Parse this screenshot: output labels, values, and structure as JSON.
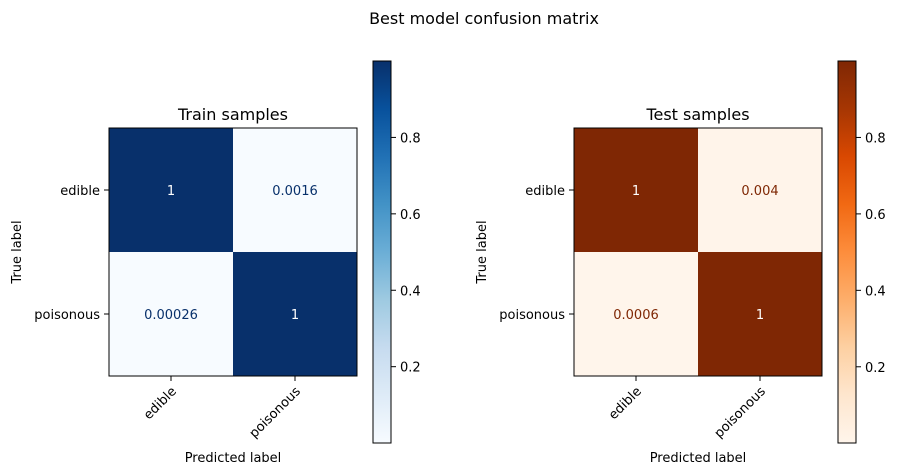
{
  "chart_data": [
    {
      "type": "heatmap",
      "suptitle": "Best model confusion matrix",
      "title": "Train samples",
      "xlabel": "Predicted label",
      "ylabel": "True label",
      "x_categories": [
        "edible",
        "poisonous"
      ],
      "y_categories": [
        "edible",
        "poisonous"
      ],
      "values": [
        [
          1,
          0.0016
        ],
        [
          0.00026,
          1
        ]
      ],
      "value_labels": [
        [
          "1",
          "0.0016"
        ],
        [
          "0.00026",
          "1"
        ]
      ],
      "colormap": "Blues",
      "color_low": "#f7fbff",
      "color_high": "#08306b",
      "colorbar_range": [
        0.00026,
        1
      ],
      "colorbar_ticks": [
        0.2,
        0.4,
        0.6,
        0.8
      ],
      "colorbar_tick_labels": [
        "0.2",
        "0.4",
        "0.6",
        "0.8"
      ]
    },
    {
      "type": "heatmap",
      "title": "Test samples",
      "xlabel": "Predicted label",
      "ylabel": "True label",
      "x_categories": [
        "edible",
        "poisonous"
      ],
      "y_categories": [
        "edible",
        "poisonous"
      ],
      "values": [
        [
          1,
          0.004
        ],
        [
          0.0006,
          1
        ]
      ],
      "value_labels": [
        [
          "1",
          "0.004"
        ],
        [
          "0.0006",
          "1"
        ]
      ],
      "colormap": "Oranges",
      "color_low": "#fff5eb",
      "color_high": "#7f2704",
      "colorbar_range": [
        0.0006,
        1
      ],
      "colorbar_ticks": [
        0.2,
        0.4,
        0.6,
        0.8
      ],
      "colorbar_tick_labels": [
        "0.2",
        "0.4",
        "0.6",
        "0.8"
      ]
    }
  ]
}
